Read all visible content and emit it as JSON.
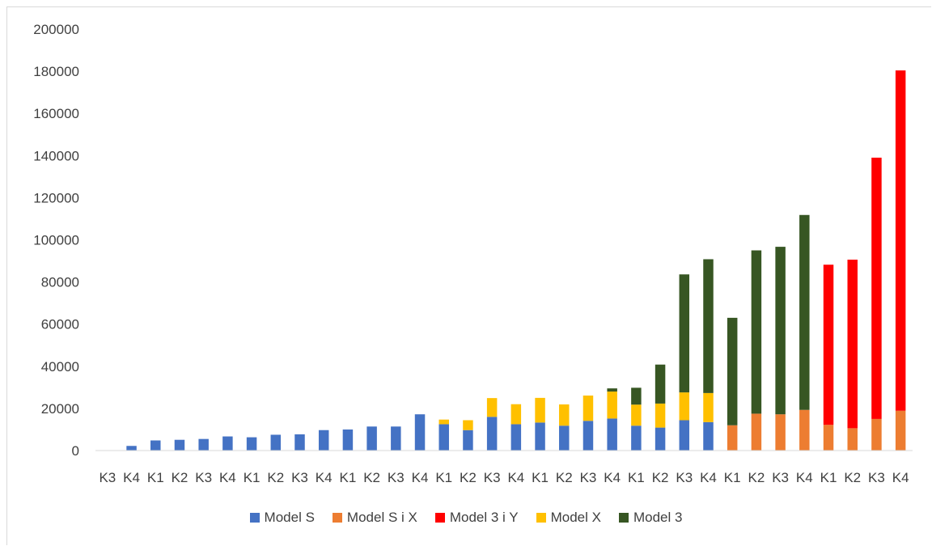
{
  "chart_data": {
    "type": "bar",
    "stacked": true,
    "title": "",
    "xlabel": "",
    "ylabel": "",
    "ylim": [
      0,
      200000
    ],
    "yticks": [
      0,
      20000,
      40000,
      60000,
      80000,
      100000,
      120000,
      140000,
      160000,
      180000,
      200000
    ],
    "grid": false,
    "legend_position": "bottom",
    "categories": [
      "K3",
      "K4",
      "K1",
      "K2",
      "K3",
      "K4",
      "K1",
      "K2",
      "K3",
      "K4",
      "K1",
      "K2",
      "K3",
      "K4",
      "K1",
      "K2",
      "K3",
      "K4",
      "K1",
      "K2",
      "K3",
      "K4",
      "K1",
      "K2",
      "K3",
      "K4",
      "K1",
      "K2",
      "K3",
      "K4",
      "K1",
      "K2",
      "K3",
      "K4"
    ],
    "series": [
      {
        "name": "Model S",
        "color": "#4472c4",
        "values": [
          0,
          2200,
          4800,
          5100,
          5500,
          6700,
          6300,
          7500,
          7700,
          9700,
          10000,
          11400,
          11400,
          17200,
          12500,
          9700,
          16000,
          12500,
          13300,
          11800,
          14100,
          15200,
          11800,
          10900,
          14400,
          13500,
          0,
          0,
          0,
          0,
          0,
          0,
          0,
          0
        ]
      },
      {
        "name": "Model S i X",
        "color": "#ed7d31",
        "values": [
          0,
          0,
          0,
          0,
          0,
          0,
          0,
          0,
          0,
          0,
          0,
          0,
          0,
          0,
          0,
          0,
          0,
          0,
          0,
          0,
          0,
          0,
          0,
          0,
          0,
          0,
          12000,
          17500,
          17200,
          19300,
          12200,
          10600,
          15000,
          18900
        ]
      },
      {
        "name": "Model 3 i Y",
        "color": "#ff0000",
        "values": [
          0,
          0,
          0,
          0,
          0,
          0,
          0,
          0,
          0,
          0,
          0,
          0,
          0,
          0,
          0,
          0,
          0,
          0,
          0,
          0,
          0,
          0,
          0,
          0,
          0,
          0,
          0,
          0,
          0,
          0,
          76000,
          80000,
          124000,
          161500
        ]
      },
      {
        "name": "Model X",
        "color": "#ffc000",
        "values": [
          0,
          0,
          0,
          0,
          0,
          0,
          0,
          0,
          0,
          0,
          0,
          0,
          0,
          0,
          2200,
          4700,
          8900,
          9500,
          11700,
          10100,
          12000,
          12800,
          10000,
          11400,
          13200,
          13800,
          0,
          0,
          0,
          0,
          0,
          0,
          0,
          0
        ]
      },
      {
        "name": "Model 3",
        "color": "#375623",
        "values": [
          0,
          0,
          0,
          0,
          0,
          0,
          0,
          0,
          0,
          0,
          0,
          0,
          0,
          0,
          0,
          0,
          0,
          0,
          0,
          0,
          0,
          1500,
          8000,
          18500,
          56000,
          63500,
          51000,
          77500,
          79500,
          92500,
          0,
          0,
          0,
          0
        ]
      }
    ],
    "stack_order": [
      "Model S",
      "Model S i X",
      "Model X",
      "Model 3",
      "Model 3 i Y"
    ]
  }
}
